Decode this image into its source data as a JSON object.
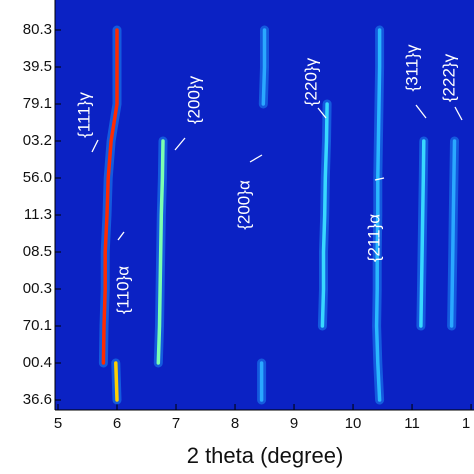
{
  "chart_data": {
    "type": "line",
    "x_label": "2 theta (degree)",
    "categories": [
      "80.3",
      "39.5",
      "79.1",
      "03.2",
      "56.0",
      "11.3",
      "08.5",
      "00.3",
      "70.1",
      "00.4",
      "36.6"
    ],
    "xlim": [
      5,
      12.05
    ],
    "xticks": [
      5,
      6,
      7,
      8,
      9,
      10,
      11,
      {
        "value": 12,
        "label": "1"
      }
    ],
    "background": "#0b22c4",
    "series": [
      {
        "name": "{111}γ",
        "color": "#ff2a00",
        "values": [
          6.0,
          6.0,
          6.0,
          5.9,
          5.85,
          5.83,
          5.8,
          5.8,
          5.78,
          5.77,
          null
        ]
      },
      {
        "name": "{110}α",
        "color": "#ffd000",
        "values": [
          null,
          null,
          null,
          null,
          null,
          null,
          null,
          null,
          null,
          5.98,
          6.0
        ]
      },
      {
        "name": "{200}γ",
        "color": "#7cffb0",
        "values": [
          null,
          null,
          null,
          6.78,
          6.77,
          6.75,
          6.74,
          6.73,
          6.72,
          6.7,
          null
        ]
      },
      {
        "name": "{200}α",
        "color": "#2aa8ff",
        "values": [
          8.5,
          8.5,
          8.48,
          null,
          null,
          null,
          null,
          null,
          null,
          8.45,
          8.45
        ]
      },
      {
        "name": "{220}γ",
        "color": "#38d8ff",
        "values": [
          null,
          null,
          9.56,
          9.55,
          9.53,
          9.52,
          9.5,
          9.5,
          9.48,
          null,
          null
        ]
      },
      {
        "name": "{211}α",
        "color": "#2ab8ff",
        "values": [
          10.45,
          10.45,
          10.44,
          10.43,
          10.42,
          10.42,
          10.41,
          10.41,
          10.4,
          10.42,
          10.45
        ]
      },
      {
        "name": "{311}γ",
        "color": "#38d8ff",
        "values": [
          null,
          null,
          null,
          11.2,
          11.19,
          11.18,
          11.17,
          11.16,
          11.15,
          null,
          null
        ]
      },
      {
        "name": "{222}γ",
        "color": "#2aa8ff",
        "values": [
          null,
          null,
          null,
          11.72,
          11.71,
          11.7,
          11.69,
          11.68,
          11.67,
          null,
          null
        ]
      }
    ]
  }
}
